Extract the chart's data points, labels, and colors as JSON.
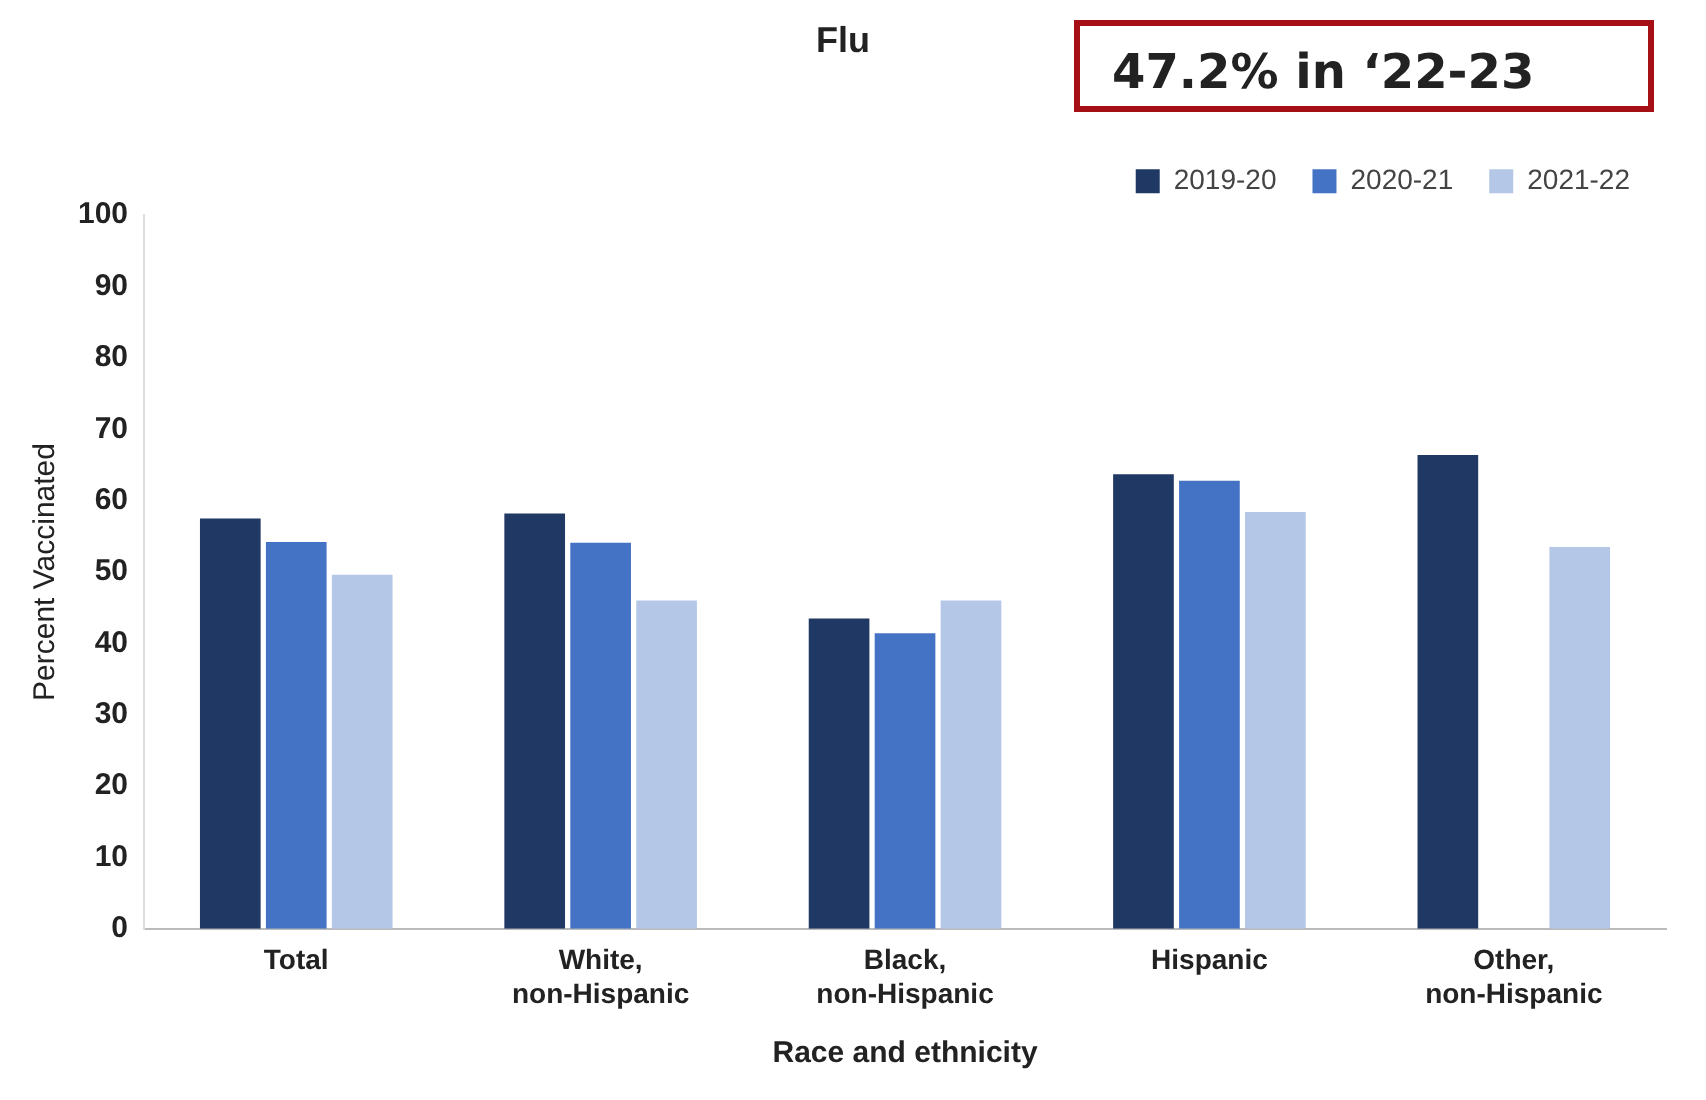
{
  "chart_data": {
    "type": "bar",
    "title": "Flu",
    "xlabel": "Race and ethnicity",
    "ylabel": "Percent Vaccinated",
    "annotations": [
      "47.2% in ‘22-23"
    ],
    "categories": [
      "Total",
      "White, non-Hispanic",
      "Black, non-Hispanic",
      "Hispanic",
      "Other, non-Hispanic"
    ],
    "series": [
      {
        "name": "2019-20",
        "color": "#1f3864",
        "values": [
          57.5,
          58.2,
          43.5,
          63.7,
          66.4
        ]
      },
      {
        "name": "2020-21",
        "color": "#4472c4",
        "values": [
          54.2,
          54.1,
          41.4,
          62.8,
          null
        ]
      },
      {
        "name": "2021-22",
        "color": "#b4c7e7",
        "values": [
          49.6,
          46.0,
          46.0,
          58.4,
          53.5
        ]
      }
    ],
    "ylim": [
      0,
      100
    ],
    "yticks": [
      0,
      10,
      20,
      30,
      40,
      50,
      60,
      70,
      80,
      90,
      100
    ],
    "grid": false,
    "legend": "top right"
  }
}
